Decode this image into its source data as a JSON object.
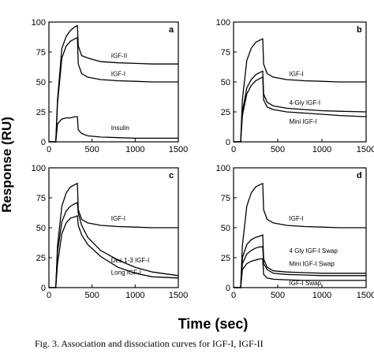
{
  "figure": {
    "ylabel": "Response (RU)",
    "xlabel": "Time (sec)",
    "caption": "Fig. 3. Association and dissociation curves for IGF-I, IGF-II"
  },
  "chart_data": [
    {
      "type": "line",
      "panel": "a",
      "xlim": [
        0,
        1500
      ],
      "ylim": [
        0,
        100
      ],
      "xticks": [
        0,
        500,
        1000,
        1500
      ],
      "yticks": [
        0,
        25,
        50,
        75,
        100
      ],
      "series": [
        {
          "name": "IGF-II",
          "label_y": 70,
          "x": [
            0,
            80,
            100,
            150,
            200,
            250,
            300,
            330,
            340,
            380,
            450,
            600,
            800,
            1000,
            1200,
            1500
          ],
          "y": [
            0,
            0,
            35,
            78,
            88,
            93,
            96,
            97,
            80,
            72,
            70,
            67,
            66,
            65.5,
            65,
            65
          ]
        },
        {
          "name": "IGF-I",
          "label_y": 55,
          "x": [
            0,
            80,
            100,
            150,
            200,
            250,
            300,
            330,
            340,
            380,
            450,
            600,
            800,
            1000,
            1200,
            1500
          ],
          "y": [
            0,
            0,
            32,
            70,
            80,
            84,
            86,
            87,
            65,
            57,
            54,
            52,
            51,
            50.5,
            50,
            50
          ]
        },
        {
          "name": "Insulin",
          "label_y": 10,
          "x": [
            0,
            80,
            100,
            150,
            200,
            250,
            300,
            330,
            340,
            380,
            450,
            600,
            800,
            1000,
            1200,
            1500
          ],
          "y": [
            0,
            0,
            15,
            19,
            20,
            20,
            21,
            21,
            10,
            7,
            5,
            4,
            3.5,
            3,
            3,
            3
          ]
        }
      ]
    },
    {
      "type": "line",
      "panel": "b",
      "xlim": [
        0,
        1500
      ],
      "ylim": [
        0,
        100
      ],
      "xticks": [
        0,
        500,
        1000,
        1500
      ],
      "yticks": [
        0,
        25,
        50,
        75,
        100
      ],
      "series": [
        {
          "name": "IGF-I",
          "label_y": 55,
          "x": [
            0,
            80,
            100,
            150,
            200,
            250,
            300,
            330,
            340,
            380,
            450,
            600,
            800,
            1000,
            1200,
            1500
          ],
          "y": [
            0,
            0,
            35,
            68,
            78,
            83,
            85,
            86,
            65,
            57,
            54,
            52,
            51,
            50.5,
            50,
            50
          ]
        },
        {
          "name": "4-Gly IGF-I",
          "label_y": 31,
          "x": [
            0,
            80,
            100,
            150,
            200,
            250,
            300,
            330,
            340,
            380,
            450,
            600,
            800,
            1000,
            1200,
            1500
          ],
          "y": [
            0,
            0,
            25,
            45,
            52,
            56,
            58,
            59,
            40,
            33,
            30,
            28,
            27,
            26,
            25.5,
            25
          ]
        },
        {
          "name": "Mini IGF-I",
          "label_y": 15,
          "x": [
            0,
            80,
            100,
            150,
            200,
            250,
            300,
            330,
            340,
            380,
            450,
            600,
            800,
            1000,
            1200,
            1500
          ],
          "y": [
            0,
            0,
            22,
            40,
            47,
            51,
            53,
            54,
            35,
            29,
            27,
            25,
            24,
            23,
            22,
            21
          ]
        }
      ]
    },
    {
      "type": "line",
      "panel": "c",
      "xlim": [
        0,
        1500
      ],
      "ylim": [
        0,
        100
      ],
      "xticks": [
        0,
        500,
        1000,
        1500
      ],
      "yticks": [
        0,
        25,
        50,
        75,
        100
      ],
      "series": [
        {
          "name": "IGF-I",
          "label_y": 56,
          "x": [
            0,
            80,
            100,
            150,
            200,
            250,
            300,
            330,
            340,
            380,
            450,
            600,
            800,
            1000,
            1200,
            1500
          ],
          "y": [
            0,
            0,
            35,
            68,
            79,
            84,
            86,
            87,
            65,
            57,
            54,
            52,
            51,
            50.5,
            50,
            50
          ]
        },
        {
          "name": "Des 1-3 IGF-I",
          "label_y": 21,
          "x": [
            0,
            80,
            100,
            150,
            200,
            250,
            300,
            330,
            340,
            380,
            450,
            600,
            800,
            1000,
            1200,
            1500
          ],
          "y": [
            0,
            0,
            30,
            55,
            64,
            68,
            70,
            71,
            62,
            52,
            42,
            31,
            23,
            17,
            13,
            10
          ]
        },
        {
          "name": "Long IGF-I",
          "label_y": 11,
          "x": [
            0,
            80,
            100,
            150,
            200,
            250,
            300,
            330,
            340,
            380,
            450,
            600,
            800,
            1000,
            1200,
            1500
          ],
          "y": [
            0,
            0,
            20,
            45,
            54,
            58,
            59,
            60,
            52,
            44,
            36,
            26,
            17,
            12,
            9,
            8
          ]
        }
      ]
    },
    {
      "type": "line",
      "panel": "d",
      "xlim": [
        0,
        1500
      ],
      "ylim": [
        0,
        100
      ],
      "xticks": [
        0,
        500,
        1000,
        1500
      ],
      "yticks": [
        0,
        25,
        50,
        75,
        100
      ],
      "series": [
        {
          "name": "IGF-I",
          "label_y": 56,
          "x": [
            0,
            80,
            100,
            150,
            200,
            250,
            300,
            330,
            340,
            380,
            450,
            600,
            800,
            1000,
            1200,
            1500
          ],
          "y": [
            0,
            0,
            35,
            68,
            79,
            84,
            86,
            87,
            65,
            57,
            54,
            52,
            51,
            50.5,
            50,
            50
          ]
        },
        {
          "name": "4 Gly IGF-I Swap",
          "label_y": 29,
          "x": [
            0,
            80,
            100,
            150,
            200,
            250,
            300,
            330,
            340,
            380,
            450,
            600,
            800,
            1000,
            1200,
            1500
          ],
          "y": [
            0,
            0,
            25,
            36,
            40,
            42,
            43,
            44,
            24,
            17,
            14,
            13,
            12.5,
            12,
            12,
            12
          ]
        },
        {
          "name": "Mini IGF-I Swap",
          "label_y": 18,
          "x": [
            0,
            80,
            100,
            150,
            200,
            250,
            300,
            330,
            340,
            380,
            450,
            600,
            800,
            1000,
            1200,
            1500
          ],
          "y": [
            0,
            0,
            20,
            28,
            31,
            33,
            34,
            34,
            20,
            15,
            12,
            11,
            10.5,
            10,
            10,
            10
          ]
        },
        {
          "name": "IGF-I Swap",
          "label_y": 2,
          "x": [
            0,
            80,
            100,
            150,
            200,
            250,
            300,
            330,
            340,
            380,
            450,
            600,
            800,
            1000,
            1200,
            1500
          ],
          "y": [
            0,
            0,
            15,
            20,
            22,
            23,
            24,
            24,
            11,
            8,
            7,
            6.5,
            6,
            6,
            6,
            6
          ]
        }
      ]
    }
  ]
}
